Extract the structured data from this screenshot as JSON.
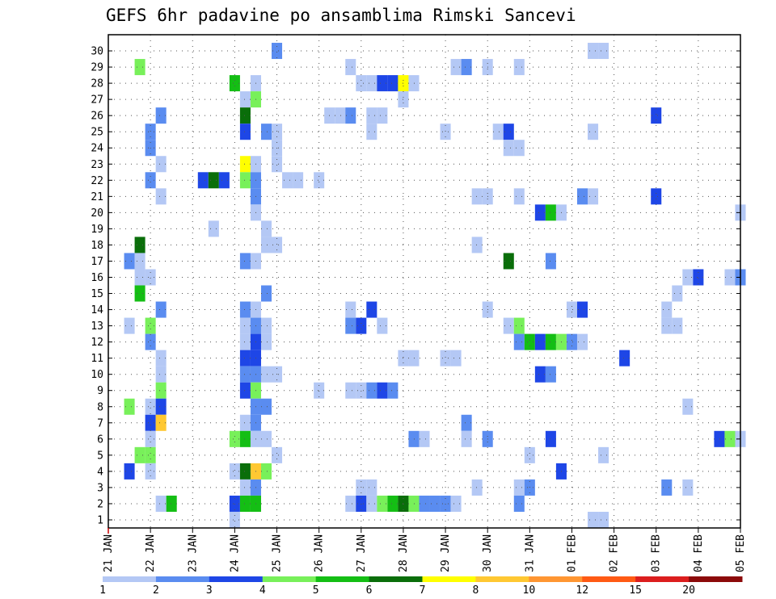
{
  "chart_data": {
    "type": "heatmap",
    "title": "GEFS 6hr padavine po ansamblima Rimski Sancevi",
    "xlabel": "",
    "ylabel": "",
    "x_tick_labels": [
      "21 JAN",
      "22 JAN",
      "23 JAN",
      "24 JAN",
      "25 JAN",
      "26 JAN",
      "27 JAN",
      "28 JAN",
      "29 JAN",
      "30 JAN",
      "31 JAN",
      "01 FEB",
      "02 FEB",
      "03 FEB",
      "04 FEB",
      "05 FEB"
    ],
    "x_range_steps": [
      0,
      60
    ],
    "x_step_hours": 6,
    "y_members": [
      1,
      2,
      3,
      4,
      5,
      6,
      7,
      8,
      9,
      10,
      11,
      12,
      13,
      14,
      15,
      16,
      17,
      18,
      19,
      20,
      21,
      22,
      23,
      24,
      25,
      26,
      27,
      28,
      29,
      30
    ],
    "grid": true,
    "legend": {
      "placement": "bottom",
      "labels": [
        "1",
        "2",
        "3",
        "4",
        "5",
        "6",
        "7",
        "8",
        "10",
        "12",
        "15",
        "20"
      ],
      "colors": [
        "#b4c8f5",
        "#5a8cf0",
        "#1e46e6",
        "#78f05a",
        "#14be14",
        "#0a6e0a",
        "#ffff00",
        "#ffc832",
        "#ff9632",
        "#ff5a14",
        "#dc1e1e",
        "#8c0a0a"
      ]
    },
    "levels": [
      [
        1,
        2,
        3
      ],
      [
        2,
        3,
        4
      ],
      [
        3,
        4,
        5
      ],
      [
        4,
        5,
        6
      ],
      [
        5,
        6,
        7
      ],
      [
        6,
        7,
        8
      ],
      [
        7,
        8,
        10
      ],
      [
        8,
        10,
        12
      ],
      [
        10,
        12,
        15
      ],
      [
        12,
        15,
        20
      ],
      [
        15,
        20,
        30
      ],
      [
        20,
        30,
        99
      ]
    ],
    "cells": [
      [
        30,
        16,
        1
      ],
      [
        30,
        46,
        0
      ],
      [
        30,
        47,
        0
      ],
      [
        29,
        3,
        3
      ],
      [
        29,
        23,
        0
      ],
      [
        29,
        33,
        0
      ],
      [
        29,
        34,
        1
      ],
      [
        29,
        36,
        0
      ],
      [
        29,
        39,
        0
      ],
      [
        28,
        12,
        4
      ],
      [
        28,
        14,
        0
      ],
      [
        28,
        24,
        0
      ],
      [
        28,
        25,
        0
      ],
      [
        28,
        26,
        2
      ],
      [
        28,
        27,
        2
      ],
      [
        28,
        28,
        6
      ],
      [
        28,
        29,
        0
      ],
      [
        27,
        13,
        0
      ],
      [
        27,
        14,
        3
      ],
      [
        27,
        28,
        0
      ],
      [
        26,
        5,
        1
      ],
      [
        26,
        13,
        5
      ],
      [
        26,
        21,
        0
      ],
      [
        26,
        22,
        0
      ],
      [
        26,
        23,
        1
      ],
      [
        26,
        25,
        0
      ],
      [
        26,
        26,
        0
      ],
      [
        26,
        52,
        2
      ],
      [
        25,
        4,
        1
      ],
      [
        25,
        13,
        2
      ],
      [
        25,
        15,
        1
      ],
      [
        25,
        16,
        0
      ],
      [
        25,
        25,
        0
      ],
      [
        25,
        32,
        0
      ],
      [
        25,
        37,
        0
      ],
      [
        25,
        38,
        2
      ],
      [
        25,
        46,
        0
      ],
      [
        24,
        4,
        1
      ],
      [
        24,
        16,
        0
      ],
      [
        24,
        38,
        0
      ],
      [
        24,
        39,
        0
      ],
      [
        23,
        5,
        0
      ],
      [
        23,
        13,
        6
      ],
      [
        23,
        14,
        0
      ],
      [
        23,
        16,
        0
      ],
      [
        22,
        4,
        1
      ],
      [
        22,
        9,
        2
      ],
      [
        22,
        10,
        5
      ],
      [
        22,
        11,
        2
      ],
      [
        22,
        13,
        3
      ],
      [
        22,
        14,
        1
      ],
      [
        22,
        17,
        0
      ],
      [
        22,
        18,
        0
      ],
      [
        22,
        20,
        0
      ],
      [
        21,
        5,
        0
      ],
      [
        21,
        14,
        1
      ],
      [
        21,
        35,
        0
      ],
      [
        21,
        36,
        0
      ],
      [
        21,
        39,
        0
      ],
      [
        21,
        45,
        1
      ],
      [
        21,
        46,
        0
      ],
      [
        21,
        52,
        2
      ],
      [
        20,
        14,
        0
      ],
      [
        20,
        41,
        2
      ],
      [
        20,
        42,
        4
      ],
      [
        20,
        43,
        0
      ],
      [
        20,
        60,
        0
      ],
      [
        19,
        10,
        0
      ],
      [
        19,
        15,
        0
      ],
      [
        18,
        3,
        5
      ],
      [
        18,
        15,
        0
      ],
      [
        18,
        16,
        0
      ],
      [
        18,
        35,
        0
      ],
      [
        17,
        2,
        1
      ],
      [
        17,
        3,
        0
      ],
      [
        17,
        13,
        1
      ],
      [
        17,
        14,
        0
      ],
      [
        17,
        38,
        5
      ],
      [
        17,
        42,
        1
      ],
      [
        16,
        3,
        0
      ],
      [
        16,
        4,
        0
      ],
      [
        16,
        55,
        0
      ],
      [
        16,
        56,
        2
      ],
      [
        16,
        59,
        0
      ],
      [
        16,
        60,
        1
      ],
      [
        15,
        3,
        4
      ],
      [
        15,
        15,
        1
      ],
      [
        15,
        54,
        0
      ],
      [
        14,
        5,
        1
      ],
      [
        14,
        13,
        1
      ],
      [
        14,
        14,
        0
      ],
      [
        14,
        23,
        0
      ],
      [
        14,
        25,
        2
      ],
      [
        14,
        36,
        0
      ],
      [
        14,
        44,
        0
      ],
      [
        14,
        45,
        2
      ],
      [
        14,
        53,
        0
      ],
      [
        13,
        2,
        0
      ],
      [
        13,
        4,
        3
      ],
      [
        13,
        13,
        0
      ],
      [
        13,
        14,
        1
      ],
      [
        13,
        15,
        0
      ],
      [
        13,
        23,
        1
      ],
      [
        13,
        24,
        2
      ],
      [
        13,
        26,
        0
      ],
      [
        13,
        38,
        0
      ],
      [
        13,
        39,
        3
      ],
      [
        13,
        53,
        0
      ],
      [
        13,
        54,
        0
      ],
      [
        12,
        4,
        1
      ],
      [
        12,
        13,
        0
      ],
      [
        12,
        14,
        2
      ],
      [
        12,
        15,
        0
      ],
      [
        12,
        39,
        1
      ],
      [
        12,
        40,
        4
      ],
      [
        12,
        41,
        2
      ],
      [
        12,
        42,
        4
      ],
      [
        12,
        43,
        3
      ],
      [
        12,
        44,
        1
      ],
      [
        12,
        45,
        0
      ],
      [
        11,
        5,
        0
      ],
      [
        11,
        13,
        2
      ],
      [
        11,
        14,
        2
      ],
      [
        11,
        28,
        0
      ],
      [
        11,
        29,
        0
      ],
      [
        11,
        32,
        0
      ],
      [
        11,
        33,
        0
      ],
      [
        11,
        49,
        2
      ],
      [
        10,
        5,
        0
      ],
      [
        10,
        13,
        1
      ],
      [
        10,
        14,
        1
      ],
      [
        10,
        15,
        0
      ],
      [
        10,
        16,
        0
      ],
      [
        10,
        41,
        2
      ],
      [
        10,
        42,
        1
      ],
      [
        9,
        5,
        3
      ],
      [
        9,
        13,
        2
      ],
      [
        9,
        14,
        3
      ],
      [
        9,
        20,
        0
      ],
      [
        9,
        23,
        0
      ],
      [
        9,
        24,
        0
      ],
      [
        9,
        25,
        1
      ],
      [
        9,
        26,
        2
      ],
      [
        9,
        27,
        1
      ],
      [
        8,
        2,
        3
      ],
      [
        8,
        4,
        0
      ],
      [
        8,
        5,
        2
      ],
      [
        8,
        14,
        1
      ],
      [
        8,
        15,
        1
      ],
      [
        8,
        55,
        0
      ],
      [
        7,
        4,
        2
      ],
      [
        7,
        5,
        7
      ],
      [
        7,
        13,
        0
      ],
      [
        7,
        14,
        1
      ],
      [
        7,
        34,
        1
      ],
      [
        6,
        4,
        0
      ],
      [
        6,
        12,
        3
      ],
      [
        6,
        13,
        4
      ],
      [
        6,
        14,
        0
      ],
      [
        6,
        15,
        0
      ],
      [
        6,
        29,
        1
      ],
      [
        6,
        30,
        0
      ],
      [
        6,
        34,
        0
      ],
      [
        6,
        36,
        1
      ],
      [
        6,
        42,
        2
      ],
      [
        6,
        58,
        2
      ],
      [
        6,
        59,
        3
      ],
      [
        6,
        60,
        0
      ],
      [
        5,
        3,
        3
      ],
      [
        5,
        4,
        3
      ],
      [
        5,
        16,
        0
      ],
      [
        5,
        40,
        0
      ],
      [
        5,
        47,
        0
      ],
      [
        4,
        2,
        2
      ],
      [
        4,
        4,
        0
      ],
      [
        4,
        12,
        0
      ],
      [
        4,
        13,
        5
      ],
      [
        4,
        14,
        7
      ],
      [
        4,
        15,
        3
      ],
      [
        4,
        43,
        2
      ],
      [
        3,
        13,
        0
      ],
      [
        3,
        14,
        1
      ],
      [
        3,
        24,
        0
      ],
      [
        3,
        25,
        0
      ],
      [
        3,
        35,
        0
      ],
      [
        3,
        39,
        0
      ],
      [
        3,
        40,
        1
      ],
      [
        3,
        53,
        1
      ],
      [
        3,
        55,
        0
      ],
      [
        2,
        5,
        0
      ],
      [
        2,
        6,
        4
      ],
      [
        2,
        12,
        2
      ],
      [
        2,
        13,
        4
      ],
      [
        2,
        14,
        4
      ],
      [
        2,
        23,
        0
      ],
      [
        2,
        24,
        2
      ],
      [
        2,
        25,
        0
      ],
      [
        2,
        26,
        3
      ],
      [
        2,
        27,
        4
      ],
      [
        2,
        28,
        5
      ],
      [
        2,
        29,
        3
      ],
      [
        2,
        30,
        1
      ],
      [
        2,
        31,
        1
      ],
      [
        2,
        32,
        1
      ],
      [
        2,
        33,
        0
      ],
      [
        2,
        39,
        1
      ],
      [
        1,
        12,
        0
      ],
      [
        1,
        46,
        0
      ],
      [
        1,
        47,
        0
      ]
    ]
  }
}
